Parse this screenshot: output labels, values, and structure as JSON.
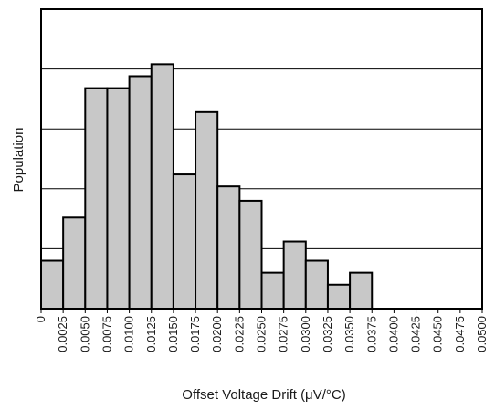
{
  "chart_data": {
    "type": "bar",
    "title": "",
    "xlabel": "Offset Voltage Drift (μV/°C)",
    "ylabel": "Population",
    "x_tick_labels": [
      "0",
      "0.0025",
      "0.0050",
      "0.0075",
      "0.0100",
      "0.0125",
      "0.0150",
      "0.0175",
      "0.0200",
      "0.0225",
      "0.0250",
      "0.0275",
      "0.0300",
      "0.0325",
      "0.0350",
      "0.0375",
      "0.0400",
      "0.0425",
      "0.0450",
      "0.0475",
      "0.0500"
    ],
    "bin_edges": [
      0,
      0.0025,
      0.005,
      0.0075,
      0.01,
      0.0125,
      0.015,
      0.0175,
      0.02,
      0.0225,
      0.025,
      0.0275,
      0.03,
      0.0325,
      0.035,
      0.0375,
      0.04,
      0.0425,
      0.045,
      0.0475,
      0.05
    ],
    "values": [
      2,
      3.8,
      9.2,
      9.2,
      9.7,
      10.2,
      5.6,
      8.2,
      5.1,
      4.5,
      1.5,
      2.8,
      2.0,
      1.0,
      1.5,
      0,
      0,
      0,
      0,
      0
    ],
    "xlim": [
      0,
      0.05
    ],
    "ylim": [
      0,
      12.5
    ],
    "y_gridlines": [
      2.5,
      5,
      7.5,
      10
    ],
    "y_tick_labels_shown": false,
    "grid": "horizontal",
    "bar_color": "#c8c8c8",
    "edge_color": "#000000"
  }
}
